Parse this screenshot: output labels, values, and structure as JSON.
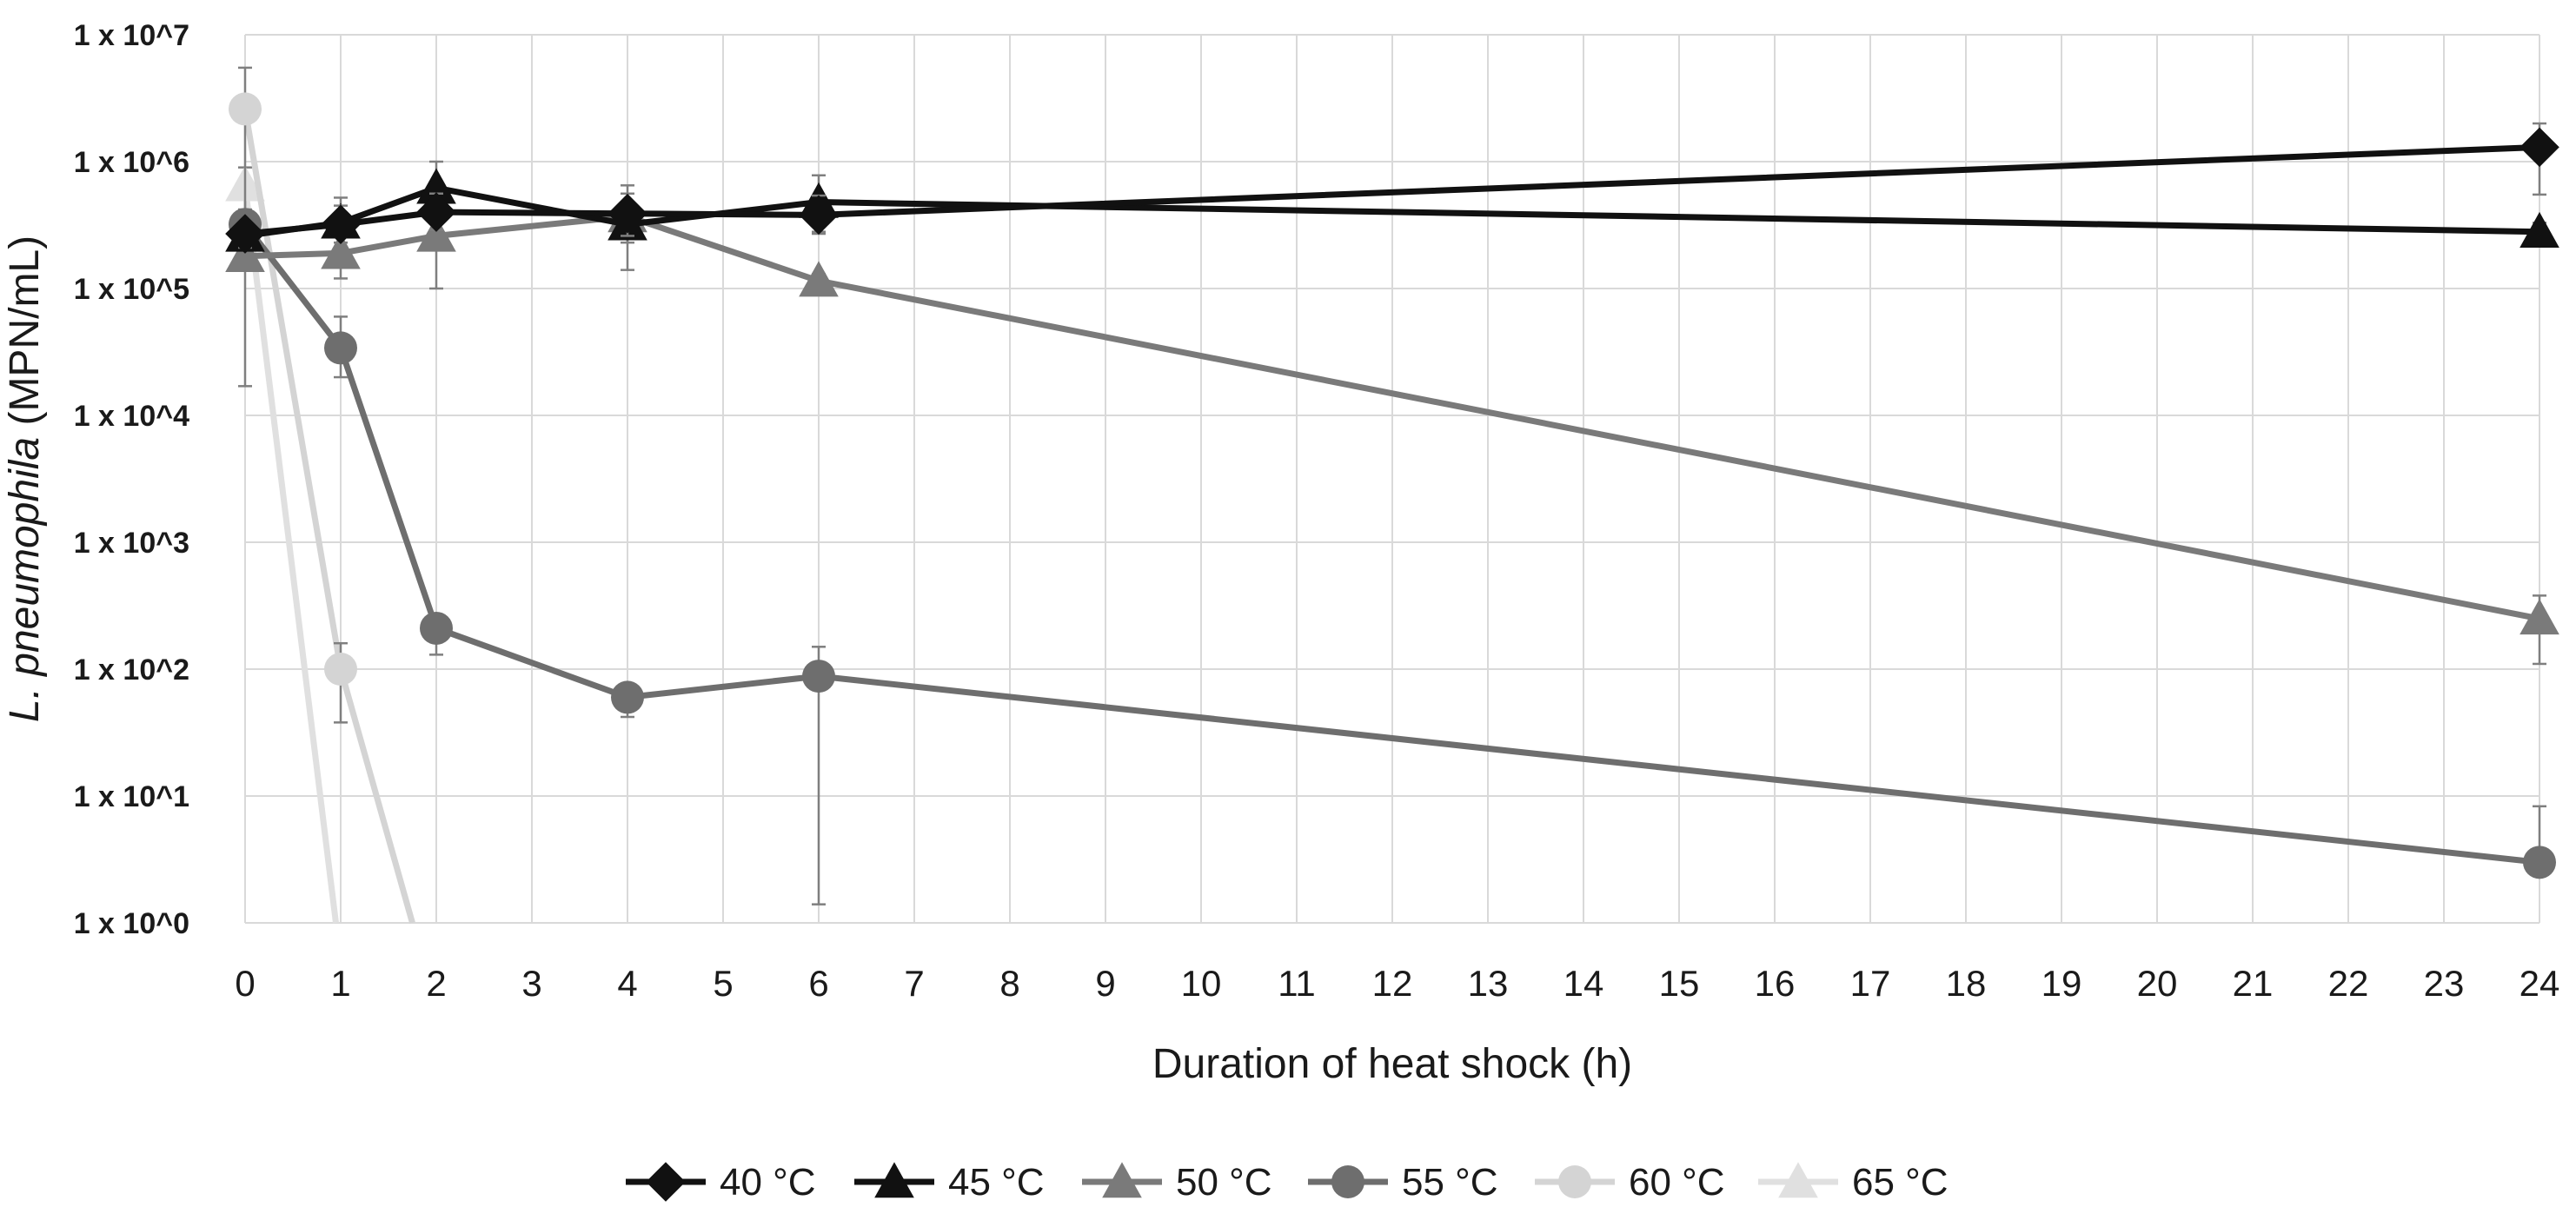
{
  "chart_data": {
    "type": "line",
    "title": "",
    "xlabel": "Duration of heat shock (h)",
    "ylabel_italic": "L. pneumophila",
    "ylabel_rest": " (MPN/mL)",
    "y_scale": "log",
    "ylim_exp": [
      0,
      7
    ],
    "xlim": [
      0,
      24
    ],
    "x_ticks": [
      0,
      1,
      2,
      3,
      4,
      5,
      6,
      7,
      8,
      9,
      10,
      11,
      12,
      13,
      14,
      15,
      16,
      17,
      18,
      19,
      20,
      21,
      22,
      23,
      24
    ],
    "y_ticks": [
      "1 x 10^0",
      "1 x 10^1",
      "1 x 10^2",
      "1 x 10^3",
      "1 x 10^4",
      "1 x 10^5",
      "1 x 10^6",
      "1 x 10^7"
    ],
    "grid": true,
    "legend_position": "bottom",
    "series": [
      {
        "name": "40 °C",
        "color": "#111111",
        "marker": "diamond",
        "points": [
          {
            "x": 0,
            "y": 270000,
            "err_hi": 330000,
            "err_lo": 210000
          },
          {
            "x": 1,
            "y": 320000,
            "err_hi": 450000,
            "err_lo": 230000
          },
          {
            "x": 2,
            "y": 400000,
            "err_hi": 560000,
            "err_lo": 290000
          },
          {
            "x": 4,
            "y": 390000,
            "err_hi": 560000,
            "err_lo": 260000
          },
          {
            "x": 6,
            "y": 380000,
            "err_hi": 540000,
            "err_lo": 270000
          },
          {
            "x": 24,
            "y": 1300000,
            "err_hi": 2000000,
            "err_lo": 550000
          }
        ]
      },
      {
        "name": "45 °C",
        "color": "#111111",
        "marker": "triangle",
        "points": [
          {
            "x": 0,
            "y": 260000,
            "err_hi": 320000,
            "err_lo": 200000
          },
          {
            "x": 1,
            "y": 330000,
            "err_hi": 520000,
            "err_lo": 230000
          },
          {
            "x": 2,
            "y": 620000,
            "err_hi": 1000000,
            "err_lo": 400000
          },
          {
            "x": 4,
            "y": 320000,
            "err_hi": 420000,
            "err_lo": 230000
          },
          {
            "x": 6,
            "y": 480000,
            "err_hi": 780000,
            "err_lo": 280000
          },
          {
            "x": 24,
            "y": 280000,
            "err_hi": 330000,
            "err_lo": 230000
          }
        ]
      },
      {
        "name": "50 °C",
        "color": "#7a7a7a",
        "marker": "triangle",
        "points": [
          {
            "x": 0,
            "y": 180000,
            "err_hi": 230000,
            "err_lo": 150000
          },
          {
            "x": 1,
            "y": 190000,
            "err_hi": 280000,
            "err_lo": 120000
          },
          {
            "x": 2,
            "y": 260000,
            "err_hi": 450000,
            "err_lo": 100000
          },
          {
            "x": 4,
            "y": 370000,
            "err_hi": 650000,
            "err_lo": 140000
          },
          {
            "x": 6,
            "y": 115000,
            "err_hi": 130000,
            "err_lo": 100000
          },
          {
            "x": 24,
            "y": 250,
            "err_hi": 380,
            "err_lo": 110
          }
        ]
      },
      {
        "name": "55 °C",
        "color": "#6e6e6e",
        "marker": "circle",
        "points": [
          {
            "x": 0,
            "y": 320000,
            "err_hi": 420000,
            "err_lo": 17000
          },
          {
            "x": 1,
            "y": 34000,
            "err_hi": 60000,
            "err_lo": 20000
          },
          {
            "x": 2,
            "y": 210,
            "err_hi": 260,
            "err_lo": 130
          },
          {
            "x": 4,
            "y": 60,
            "err_hi": 75,
            "err_lo": 42
          },
          {
            "x": 6,
            "y": 88,
            "err_hi": 150,
            "err_lo": 1.4
          },
          {
            "x": 24,
            "y": 3,
            "err_hi": 8.3,
            "err_lo": 3
          }
        ]
      },
      {
        "name": "60 °C",
        "color": "#d4d4d4",
        "marker": "circle",
        "points": [
          {
            "x": 0,
            "y": 2600000,
            "err_hi": 5500000,
            "err_lo": 300000
          },
          {
            "x": 1,
            "y": 100,
            "err_hi": 160,
            "err_lo": 38
          },
          {
            "x": 1.75,
            "y": 1,
            "err_hi": null,
            "err_lo": null
          }
        ]
      },
      {
        "name": "65 °C",
        "color": "#e0e0e0",
        "marker": "triangle",
        "points": [
          {
            "x": 0,
            "y": 650000,
            "err_hi": 900000,
            "err_lo": 400000
          },
          {
            "x": 0.95,
            "y": 1,
            "err_hi": null,
            "err_lo": null
          }
        ]
      }
    ]
  }
}
